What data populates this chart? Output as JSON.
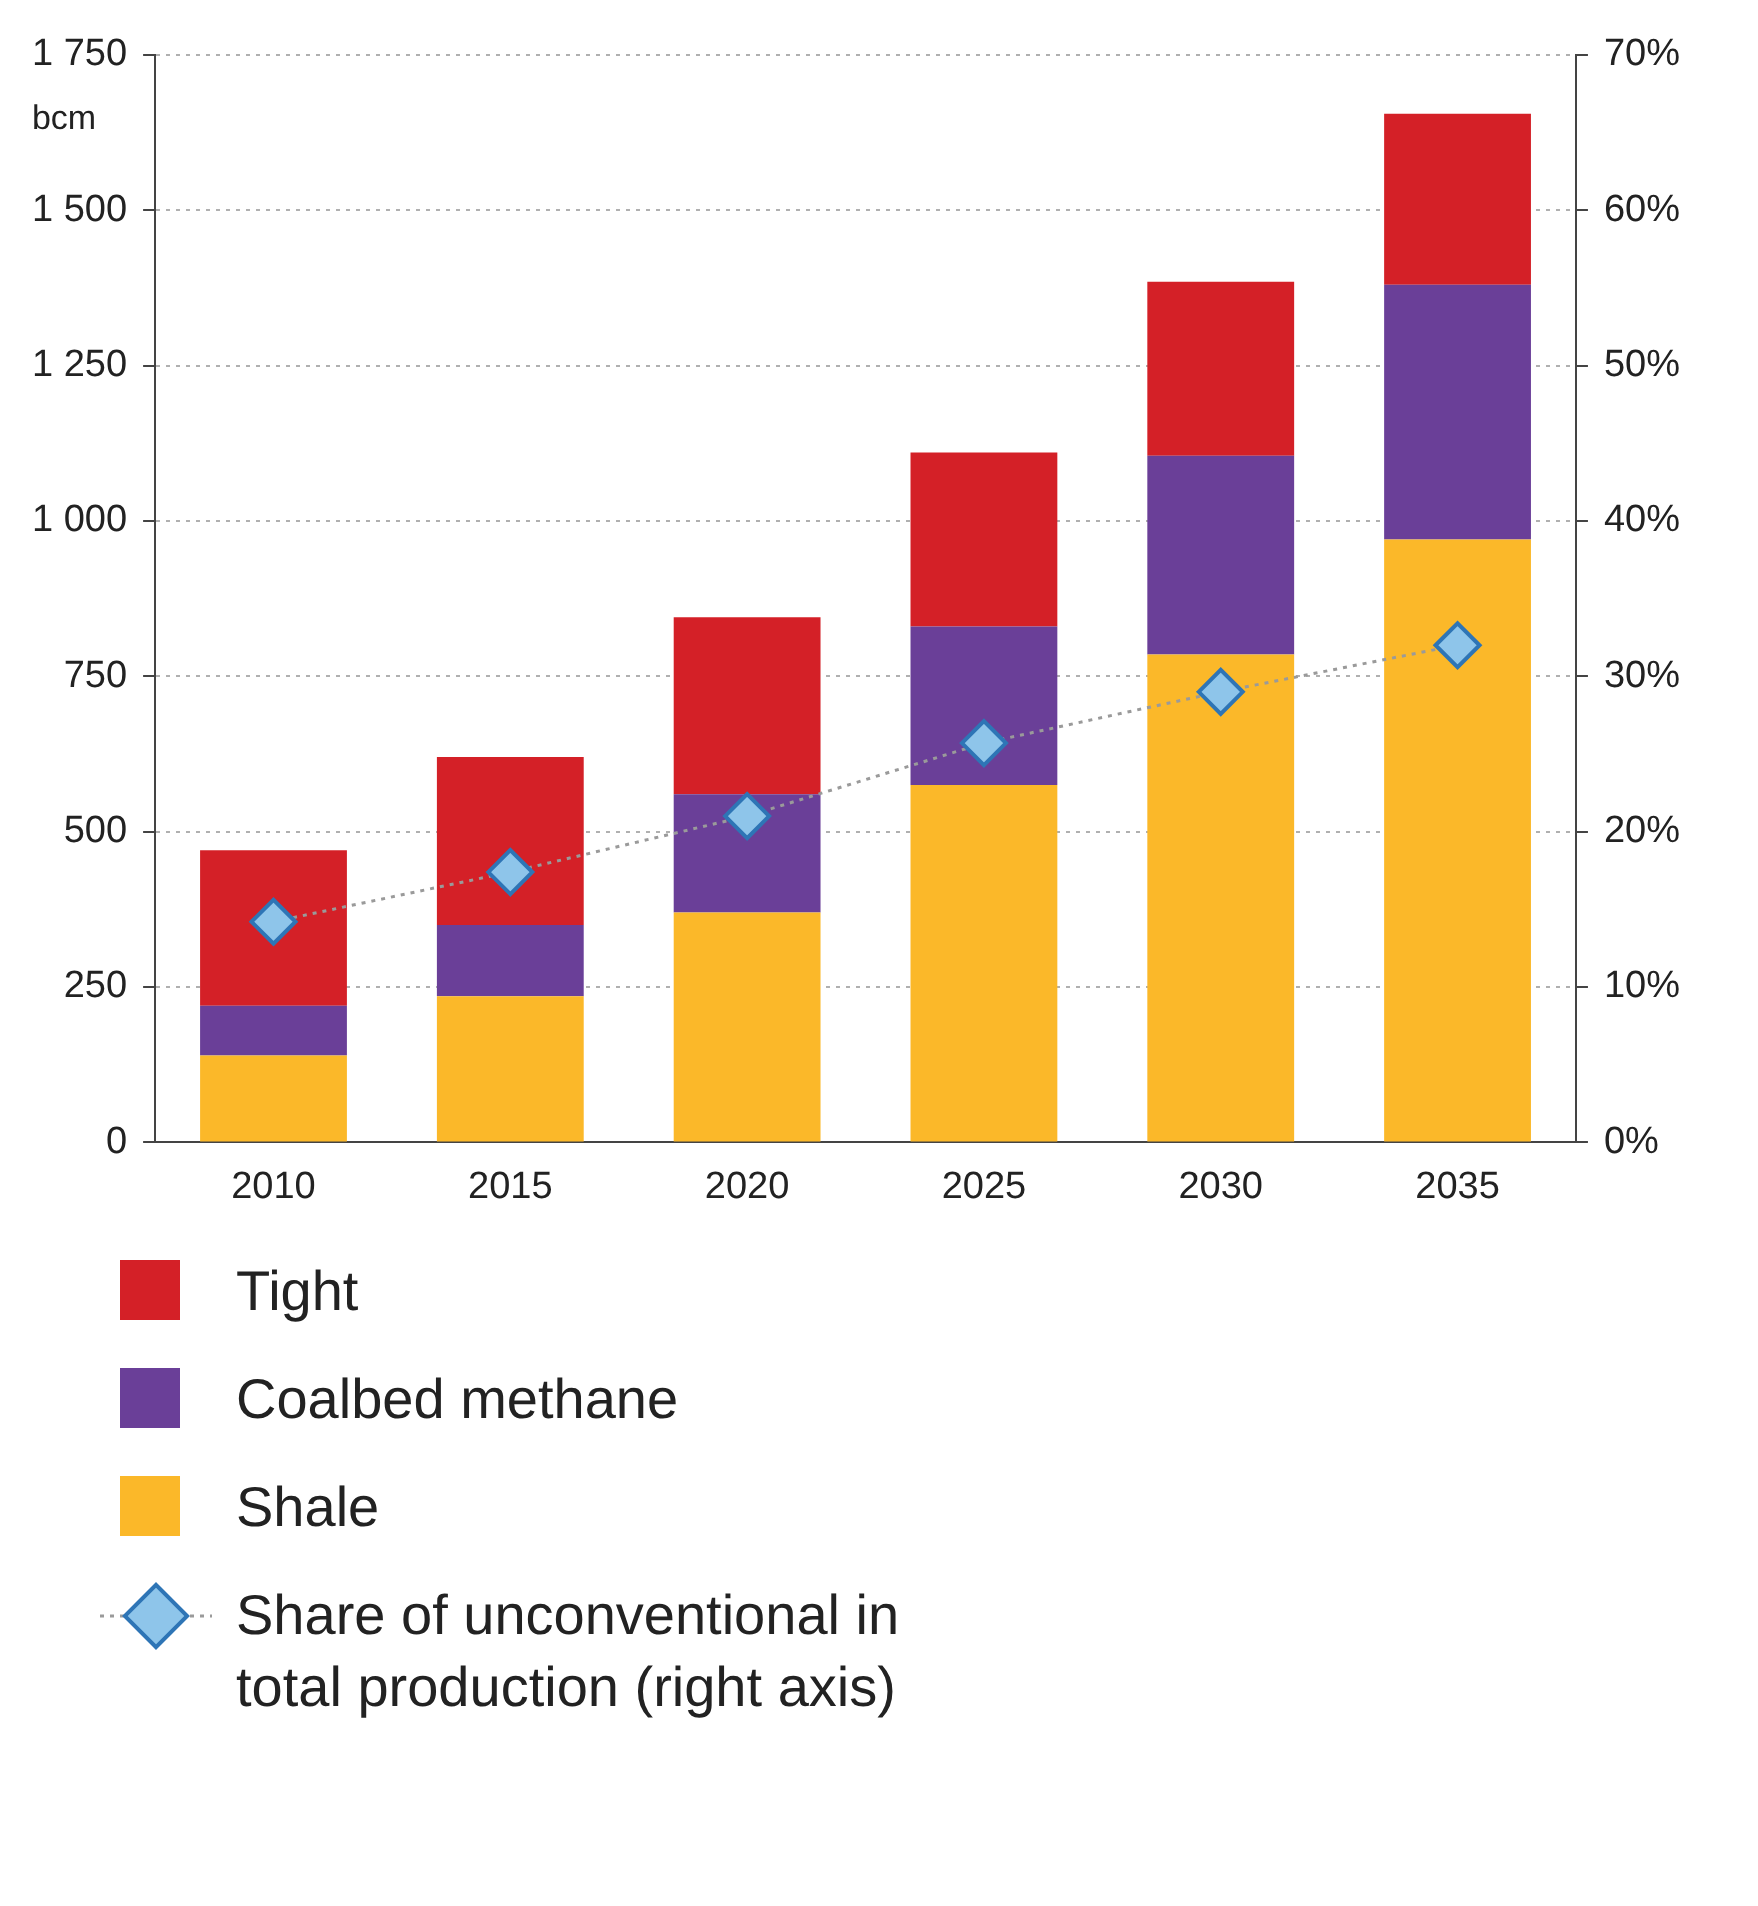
{
  "chart_data": {
    "type": "bar",
    "ylabel": "bcm",
    "categories": [
      "2010",
      "2015",
      "2020",
      "2025",
      "2030",
      "2035"
    ],
    "stacked": true,
    "series": [
      {
        "name": "Shale",
        "color": "#fbb829",
        "values": [
          140,
          235,
          370,
          575,
          785,
          970
        ]
      },
      {
        "name": "Coalbed methane",
        "color": "#6a3f98",
        "values": [
          80,
          115,
          190,
          255,
          320,
          410
        ]
      },
      {
        "name": "Tight",
        "color": "#d42027",
        "values": [
          250,
          270,
          285,
          280,
          280,
          275
        ]
      },
      {
        "name": "Share of unconventional in total production (right axis)",
        "type": "line",
        "axis": "y2",
        "color": "#8ec5ea",
        "marker": "diamond",
        "line_style": "dotted",
        "values": [
          14.2,
          17.4,
          21,
          25.7,
          29,
          32
        ]
      }
    ],
    "ylim": [
      0,
      1750
    ],
    "yticks": [
      0,
      {
        "value": 250,
        "label": "250"
      },
      {
        "value": 500,
        "label": "500"
      },
      {
        "value": 750,
        "label": "750"
      },
      {
        "value": 1000,
        "label": "1 000"
      },
      {
        "value": 1250,
        "label": "1 250"
      },
      {
        "value": 1500,
        "label": "1 500"
      },
      {
        "value": 1750,
        "label": "1 750"
      }
    ],
    "y2lim": [
      0,
      70
    ],
    "y2ticks": [
      {
        "value": 0,
        "label": "0%"
      },
      {
        "value": 10,
        "label": "10%"
      },
      {
        "value": 20,
        "label": "20%"
      },
      {
        "value": 30,
        "label": "30%"
      },
      {
        "value": 40,
        "label": "40%"
      },
      {
        "value": 50,
        "label": "50%"
      },
      {
        "value": 60,
        "label": "60%"
      },
      {
        "value": 70,
        "label": "70%"
      }
    ],
    "grid": "y",
    "legend": "bottom"
  }
}
